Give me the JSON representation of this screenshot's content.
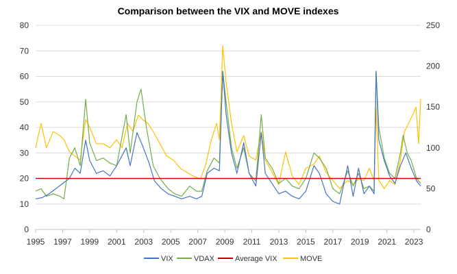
{
  "chart_data": {
    "type": "line",
    "title": "Comparison between the VIX and MOVE indexes",
    "x_ticks": [
      "1995",
      "1997",
      "1999",
      "2001",
      "2003",
      "2005",
      "2007",
      "2009",
      "2011",
      "2013",
      "2015",
      "2017",
      "2019",
      "2021",
      "2023"
    ],
    "xlim": [
      1995,
      2023.5
    ],
    "y_left": {
      "min": 0,
      "max": 80,
      "ticks": [
        "0",
        "10",
        "20",
        "30",
        "40",
        "50",
        "60",
        "70",
        "80"
      ]
    },
    "y_right": {
      "min": 0,
      "max": 250,
      "ticks": [
        "0",
        "50",
        "100",
        "150",
        "200",
        "250"
      ]
    },
    "grid": true,
    "legend_position": "bottom",
    "series": [
      {
        "name": "VIX",
        "color": "#4472C4",
        "axis": "left",
        "points": [
          [
            1995.0,
            12
          ],
          [
            1995.5,
            12.5
          ],
          [
            1996.0,
            14
          ],
          [
            1996.5,
            16
          ],
          [
            1997.0,
            18
          ],
          [
            1997.5,
            20
          ],
          [
            1997.9,
            24
          ],
          [
            1998.3,
            22
          ],
          [
            1998.7,
            35
          ],
          [
            1999.0,
            27
          ],
          [
            1999.5,
            22
          ],
          [
            2000.0,
            23
          ],
          [
            2000.5,
            21
          ],
          [
            2001.0,
            25
          ],
          [
            2001.7,
            32
          ],
          [
            2002.0,
            25
          ],
          [
            2002.5,
            38
          ],
          [
            2002.9,
            33
          ],
          [
            2003.4,
            26
          ],
          [
            2003.8,
            19
          ],
          [
            2004.3,
            16
          ],
          [
            2004.8,
            14
          ],
          [
            2005.3,
            13
          ],
          [
            2005.8,
            12
          ],
          [
            2006.4,
            13
          ],
          [
            2006.9,
            12
          ],
          [
            2007.3,
            13
          ],
          [
            2007.7,
            22
          ],
          [
            2008.2,
            24
          ],
          [
            2008.6,
            23
          ],
          [
            2008.85,
            62
          ],
          [
            2009.1,
            45
          ],
          [
            2009.5,
            30
          ],
          [
            2009.9,
            22
          ],
          [
            2010.4,
            34
          ],
          [
            2010.8,
            22
          ],
          [
            2011.3,
            17
          ],
          [
            2011.7,
            38
          ],
          [
            2012.0,
            22
          ],
          [
            2012.5,
            18
          ],
          [
            2013.0,
            14
          ],
          [
            2013.5,
            15
          ],
          [
            2014.0,
            13
          ],
          [
            2014.5,
            12
          ],
          [
            2015.0,
            15
          ],
          [
            2015.6,
            25
          ],
          [
            2016.0,
            22
          ],
          [
            2016.5,
            14
          ],
          [
            2017.0,
            11
          ],
          [
            2017.5,
            10
          ],
          [
            2018.1,
            25
          ],
          [
            2018.5,
            13
          ],
          [
            2018.9,
            24
          ],
          [
            2019.3,
            14
          ],
          [
            2019.7,
            17
          ],
          [
            2020.05,
            14
          ],
          [
            2020.2,
            62
          ],
          [
            2020.4,
            35
          ],
          [
            2020.8,
            27
          ],
          [
            2021.2,
            21
          ],
          [
            2021.6,
            18
          ],
          [
            2022.0,
            25
          ],
          [
            2022.4,
            30
          ],
          [
            2022.8,
            24
          ],
          [
            2023.2,
            19
          ],
          [
            2023.5,
            17
          ]
        ]
      },
      {
        "name": "VDAX",
        "color": "#70AD47",
        "axis": "left",
        "points": [
          [
            1995.0,
            15
          ],
          [
            1995.4,
            16
          ],
          [
            1995.8,
            13
          ],
          [
            1996.3,
            14
          ],
          [
            1996.8,
            13
          ],
          [
            1997.1,
            12
          ],
          [
            1997.5,
            28
          ],
          [
            1997.9,
            32
          ],
          [
            1998.3,
            25
          ],
          [
            1998.7,
            51
          ],
          [
            1999.0,
            34
          ],
          [
            1999.5,
            27
          ],
          [
            2000.0,
            28
          ],
          [
            2000.5,
            26
          ],
          [
            2001.0,
            25
          ],
          [
            2001.7,
            45
          ],
          [
            2002.0,
            30
          ],
          [
            2002.5,
            50
          ],
          [
            2002.8,
            55
          ],
          [
            2003.2,
            40
          ],
          [
            2003.7,
            25
          ],
          [
            2004.2,
            20
          ],
          [
            2004.8,
            16
          ],
          [
            2005.3,
            14
          ],
          [
            2005.8,
            13
          ],
          [
            2006.4,
            17
          ],
          [
            2006.9,
            15
          ],
          [
            2007.3,
            15
          ],
          [
            2007.7,
            23
          ],
          [
            2008.2,
            28
          ],
          [
            2008.6,
            26
          ],
          [
            2008.85,
            62
          ],
          [
            2009.1,
            50
          ],
          [
            2009.5,
            32
          ],
          [
            2009.9,
            24
          ],
          [
            2010.4,
            32
          ],
          [
            2010.8,
            22
          ],
          [
            2011.3,
            19
          ],
          [
            2011.7,
            45
          ],
          [
            2012.0,
            28
          ],
          [
            2012.5,
            24
          ],
          [
            2013.0,
            18
          ],
          [
            2013.5,
            20
          ],
          [
            2014.0,
            17
          ],
          [
            2014.5,
            16
          ],
          [
            2015.0,
            20
          ],
          [
            2015.6,
            30
          ],
          [
            2016.0,
            28
          ],
          [
            2016.5,
            24
          ],
          [
            2017.0,
            16
          ],
          [
            2017.5,
            14
          ],
          [
            2018.1,
            23
          ],
          [
            2018.5,
            17
          ],
          [
            2018.9,
            22
          ],
          [
            2019.3,
            16
          ],
          [
            2019.7,
            17
          ],
          [
            2020.05,
            15
          ],
          [
            2020.2,
            62
          ],
          [
            2020.4,
            40
          ],
          [
            2020.8,
            28
          ],
          [
            2021.2,
            22
          ],
          [
            2021.6,
            20
          ],
          [
            2022.0,
            30
          ],
          [
            2022.2,
            37
          ],
          [
            2022.5,
            30
          ],
          [
            2022.8,
            27
          ],
          [
            2023.2,
            20
          ],
          [
            2023.5,
            18
          ]
        ]
      },
      {
        "name": "Average VIX",
        "color": "#C00000",
        "axis": "left",
        "points": [
          [
            1995.0,
            20
          ],
          [
            2023.5,
            20
          ]
        ]
      },
      {
        "name": "MOVE",
        "color": "#FFC000",
        "axis": "right",
        "points": [
          [
            1995.0,
            100
          ],
          [
            1995.4,
            130
          ],
          [
            1995.8,
            100
          ],
          [
            1996.3,
            120
          ],
          [
            1996.8,
            115
          ],
          [
            1997.1,
            110
          ],
          [
            1997.5,
            95
          ],
          [
            1997.9,
            90
          ],
          [
            1998.3,
            85
          ],
          [
            1998.7,
            135
          ],
          [
            1999.0,
            125
          ],
          [
            1999.5,
            105
          ],
          [
            2000.0,
            105
          ],
          [
            2000.5,
            100
          ],
          [
            2001.0,
            110
          ],
          [
            2001.4,
            100
          ],
          [
            2001.8,
            130
          ],
          [
            2002.2,
            120
          ],
          [
            2002.6,
            140
          ],
          [
            2002.9,
            135
          ],
          [
            2003.3,
            130
          ],
          [
            2003.7,
            120
          ],
          [
            2004.2,
            105
          ],
          [
            2004.7,
            90
          ],
          [
            2005.2,
            85
          ],
          [
            2005.7,
            75
          ],
          [
            2006.2,
            70
          ],
          [
            2006.7,
            65
          ],
          [
            2007.2,
            62
          ],
          [
            2007.6,
            80
          ],
          [
            2008.0,
            110
          ],
          [
            2008.4,
            130
          ],
          [
            2008.6,
            110
          ],
          [
            2008.85,
            225
          ],
          [
            2009.1,
            180
          ],
          [
            2009.5,
            130
          ],
          [
            2009.9,
            95
          ],
          [
            2010.4,
            115
          ],
          [
            2010.8,
            90
          ],
          [
            2011.3,
            85
          ],
          [
            2011.7,
            120
          ],
          [
            2012.0,
            85
          ],
          [
            2012.5,
            70
          ],
          [
            2013.0,
            55
          ],
          [
            2013.5,
            95
          ],
          [
            2014.0,
            65
          ],
          [
            2014.5,
            55
          ],
          [
            2015.0,
            75
          ],
          [
            2015.6,
            80
          ],
          [
            2016.0,
            90
          ],
          [
            2016.5,
            70
          ],
          [
            2017.0,
            60
          ],
          [
            2017.5,
            50
          ],
          [
            2018.1,
            60
          ],
          [
            2018.5,
            55
          ],
          [
            2018.9,
            62
          ],
          [
            2019.3,
            60
          ],
          [
            2019.7,
            75
          ],
          [
            2020.05,
            60
          ],
          [
            2020.2,
            150
          ],
          [
            2020.4,
            60
          ],
          [
            2020.8,
            50
          ],
          [
            2021.2,
            60
          ],
          [
            2021.6,
            55
          ],
          [
            2022.0,
            85
          ],
          [
            2022.3,
            120
          ],
          [
            2022.6,
            130
          ],
          [
            2022.9,
            140
          ],
          [
            2023.15,
            150
          ],
          [
            2023.35,
            105
          ],
          [
            2023.5,
            160
          ]
        ]
      }
    ]
  }
}
